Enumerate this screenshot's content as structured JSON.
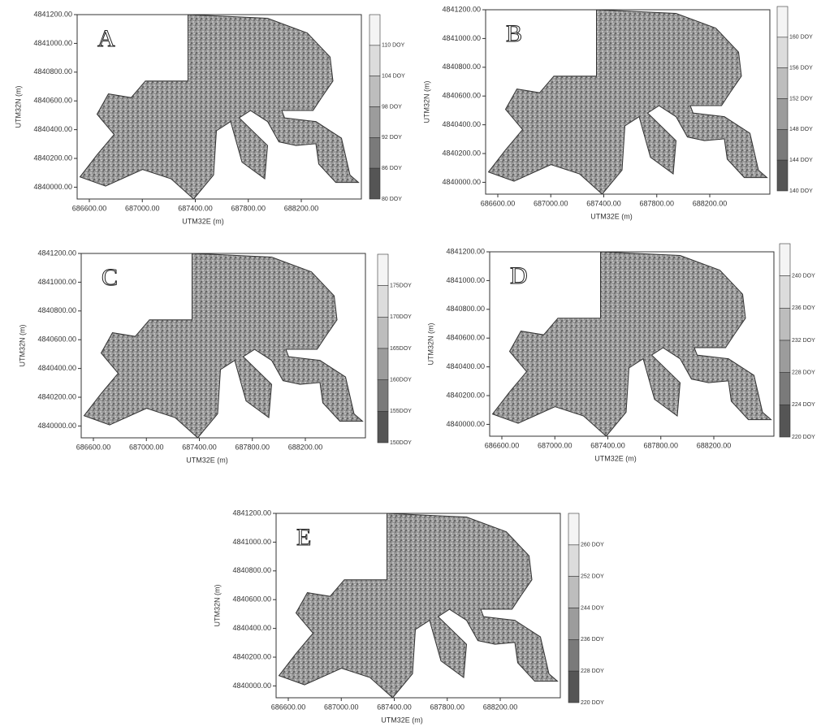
{
  "axes": {
    "x_label": "UTM32E (m)",
    "y_label": "UTM32N (m)",
    "x_ticks": [
      "686600.00",
      "687000.00",
      "687400.00",
      "687800.00",
      "688200.00"
    ],
    "y_ticks": [
      "4841200.00",
      "4841000.00",
      "4840800.00",
      "4840600.00",
      "4840400.00",
      "4840200.00",
      "4840000.00"
    ]
  },
  "panels": [
    {
      "label": "A",
      "colorbar": [
        "110 DOY",
        "104 DOY",
        "98 DOY",
        "92 DOY",
        "86 DOY",
        "80 DOY"
      ]
    },
    {
      "label": "B",
      "colorbar": [
        "160 DOY",
        "156 DOY",
        "152 DOY",
        "148 DOY",
        "144 DOY",
        "140 DOY"
      ]
    },
    {
      "label": "C",
      "colorbar": [
        "175DOY",
        "170DOY",
        "165DOY",
        "160DOY",
        "155DOY",
        "150DOY"
      ]
    },
    {
      "label": "D",
      "colorbar": [
        "240 DOY",
        "236 DOY",
        "232 DOY",
        "228 DOY",
        "224 DOY",
        "220 DOY"
      ]
    },
    {
      "label": "E",
      "colorbar": [
        "260 DOY",
        "252 DOY",
        "244 DOY",
        "236 DOY",
        "228 DOY",
        "220 DOY"
      ]
    }
  ]
}
